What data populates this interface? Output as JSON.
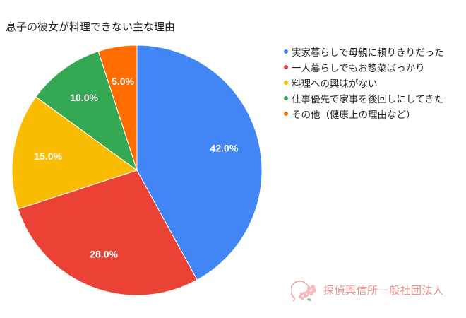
{
  "chart_data": {
    "type": "pie",
    "title": "息子の彼女が料理できない主な理由",
    "categories": [
      "実家暮らしで母親に頼りきりだった",
      "一人暮らしでもお惣菜ばっかり",
      "料理への興味がない",
      "仕事優先で家事を後回しにしてきた",
      "その他（健康上の理由など）"
    ],
    "values": [
      42.0,
      28.0,
      15.0,
      10.0,
      5.0
    ],
    "labels": [
      "42.0%",
      "28.0%",
      "15.0%",
      "10.0%",
      "5.0%"
    ],
    "colors": [
      "#4285f4",
      "#ea4335",
      "#fbbc04",
      "#34a853",
      "#ff6d01"
    ],
    "legend_position": "right",
    "start_angle": "12 o'clock, clockwise"
  },
  "legend": {
    "items": [
      {
        "label": "実家暮らしで母親に頼りきりだった",
        "color": "#4285f4"
      },
      {
        "label": "一人暮らしでもお惣菜ばっかり",
        "color": "#ea4335"
      },
      {
        "label": "料理への興味がない",
        "color": "#fbbc04"
      },
      {
        "label": "仕事優先で家事を後回しにしてきた",
        "color": "#34a853"
      },
      {
        "label": "その他（健康上の理由など）",
        "color": "#ff6d01"
      }
    ]
  },
  "logo": {
    "text": "探偵興信所一般社団法人",
    "color": "#ee8f8f"
  }
}
